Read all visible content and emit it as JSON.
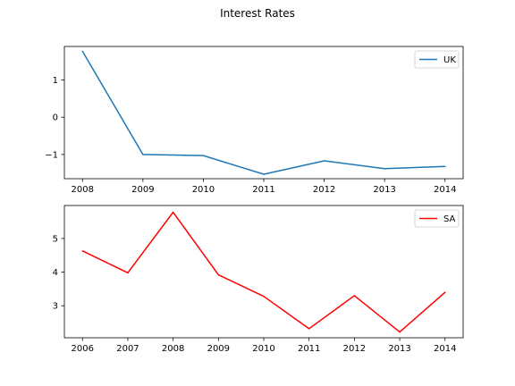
{
  "figure": {
    "title": "Interest Rates"
  },
  "chart_data": [
    {
      "type": "line",
      "x": [
        2008,
        2009,
        2010,
        2011,
        2012,
        2013,
        2014
      ],
      "series": [
        {
          "name": "UK",
          "color": "#1f77b4",
          "values": [
            1.77,
            -1.0,
            -1.03,
            -1.53,
            -1.17,
            -1.38,
            -1.32
          ]
        }
      ],
      "xlim": [
        2007.7,
        2014.3
      ],
      "ylim": [
        -1.65,
        1.9
      ],
      "xticks": [
        2008,
        2009,
        2010,
        2011,
        2012,
        2013,
        2014
      ],
      "yticks": [
        -1,
        0,
        1
      ],
      "ytick_labels": [
        "−1",
        "0",
        "1"
      ],
      "legend": "top-right",
      "grid": false
    },
    {
      "type": "line",
      "x": [
        2006,
        2007,
        2008,
        2009,
        2010,
        2011,
        2012,
        2013,
        2014
      ],
      "series": [
        {
          "name": "SA",
          "color": "#ff0000",
          "values": [
            4.63,
            3.98,
            5.78,
            3.92,
            3.28,
            2.32,
            3.3,
            2.22,
            3.4
          ]
        }
      ],
      "xlim": [
        2005.6,
        2014.4
      ],
      "ylim": [
        2.05,
        5.98
      ],
      "xticks": [
        2006,
        2007,
        2008,
        2009,
        2010,
        2011,
        2012,
        2013,
        2014
      ],
      "yticks": [
        3,
        4,
        5
      ],
      "ytick_labels": [
        "3",
        "4",
        "5"
      ],
      "legend": "top-right",
      "grid": false
    }
  ]
}
